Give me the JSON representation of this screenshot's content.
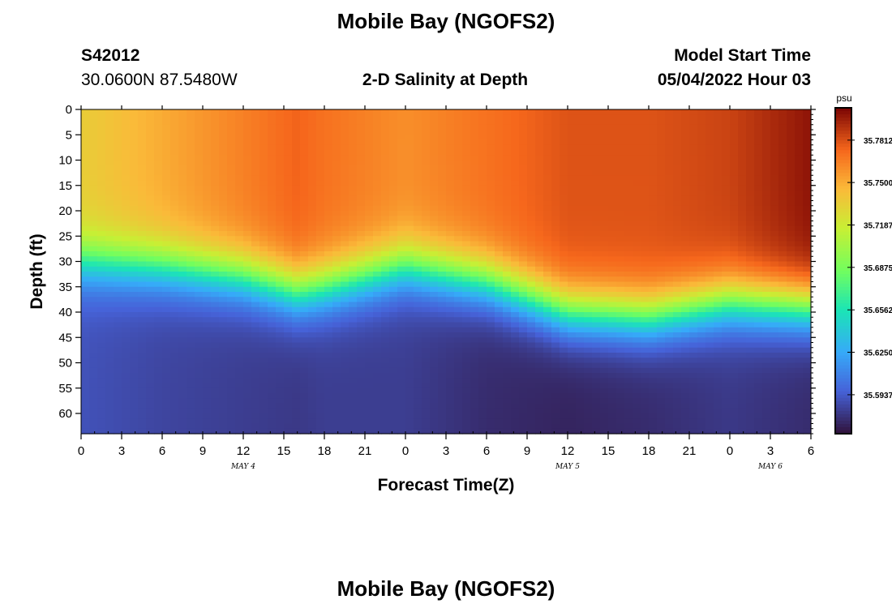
{
  "header": {
    "title": "Mobile Bay (NGOFS2)",
    "station_id": "S42012",
    "station_coords": "30.0600N  87.5480W",
    "subtitle": "2-D Salinity at Depth",
    "model_start_label": "Model Start Time",
    "model_start_value": "05/04/2022 Hour 03"
  },
  "footer": {
    "title": "Mobile Bay (NGOFS2)"
  },
  "chart_data": {
    "type": "heatmap",
    "title": "2-D Salinity at Depth",
    "xlabel": "Forecast Time(Z)",
    "ylabel": "Depth (ft)",
    "x_tick_hours": [
      0,
      3,
      6,
      9,
      12,
      15,
      18,
      21,
      24,
      27,
      30,
      33,
      36,
      39,
      42,
      45,
      48,
      51,
      54
    ],
    "x_tick_labels": [
      "0",
      "3",
      "6",
      "9",
      "12",
      "15",
      "18",
      "21",
      "0",
      "3",
      "6",
      "9",
      "12",
      "15",
      "18",
      "21",
      "0",
      "3",
      "6"
    ],
    "xlim_hours": [
      0,
      54
    ],
    "day_labels": [
      {
        "label": "MAY 4",
        "hour": 12
      },
      {
        "label": "MAY 5",
        "hour": 36
      },
      {
        "label": "MAY 6",
        "hour": 51
      }
    ],
    "y_ticks": [
      0,
      5,
      10,
      15,
      20,
      25,
      30,
      35,
      40,
      45,
      50,
      55,
      60
    ],
    "ylim": [
      0,
      64
    ],
    "y_inverted": true,
    "colorbar": {
      "unit": "psu",
      "min": 35.565,
      "max": 35.805,
      "ticks": [
        35.7812,
        35.75,
        35.7187,
        35.6875,
        35.6562,
        35.625,
        35.5937
      ],
      "tick_labels": [
        "35.7812",
        "35.7500",
        "35.7187",
        "35.6875",
        "35.6562",
        "35.6250",
        "35.5937"
      ]
    },
    "grid": false,
    "time_hours": [
      0,
      6,
      12,
      16,
      18,
      24,
      30,
      36,
      42,
      48,
      54
    ],
    "halocline_depth_ft": [
      30,
      31,
      33,
      36,
      35,
      31,
      34,
      40,
      41,
      38,
      39
    ],
    "surface_salinity": [
      35.735,
      35.75,
      35.765,
      35.775,
      35.77,
      35.76,
      35.77,
      35.78,
      35.78,
      35.785,
      35.8
    ],
    "deep_salinity": [
      35.59,
      35.585,
      35.582,
      35.58,
      35.582,
      35.582,
      35.575,
      35.572,
      35.575,
      35.58,
      35.575
    ]
  }
}
